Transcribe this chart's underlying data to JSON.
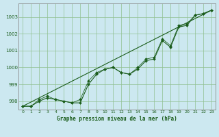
{
  "title": "Graphe pression niveau de la mer (hPa)",
  "background_color": "#cce8f0",
  "line_color": "#1a5c1a",
  "grid_color": "#90c090",
  "xlim": [
    -0.5,
    23.5
  ],
  "ylim": [
    997.5,
    1003.8
  ],
  "yticks": [
    998,
    999,
    1000,
    1001,
    1002,
    1003
  ],
  "xticks": [
    0,
    1,
    2,
    3,
    4,
    5,
    6,
    7,
    8,
    9,
    10,
    11,
    12,
    13,
    14,
    15,
    16,
    17,
    18,
    19,
    20,
    21,
    22,
    23
  ],
  "series1_x": [
    0,
    1,
    2,
    3,
    4,
    5,
    6,
    7,
    8,
    9,
    10,
    11,
    12,
    13,
    14,
    15,
    16,
    17,
    18,
    19,
    20,
    21,
    22,
    23
  ],
  "series1_y": [
    997.7,
    997.7,
    998.0,
    998.2,
    998.1,
    998.0,
    997.9,
    997.9,
    999.0,
    999.6,
    999.9,
    1000.0,
    999.7,
    999.6,
    999.9,
    1000.4,
    1000.5,
    1001.6,
    1001.2,
    1002.4,
    1002.5,
    1003.1,
    1003.2,
    1003.4
  ],
  "series2_x": [
    0,
    1,
    2,
    3,
    4,
    5,
    6,
    7,
    8,
    9,
    10,
    11,
    12,
    13,
    14,
    15,
    16,
    17,
    18,
    19,
    20,
    21,
    22,
    23
  ],
  "series2_y": [
    997.7,
    997.7,
    998.1,
    998.3,
    998.1,
    998.0,
    997.9,
    998.1,
    999.2,
    999.7,
    999.9,
    1000.0,
    999.7,
    999.6,
    1000.0,
    1000.5,
    1000.6,
    1001.7,
    1001.3,
    1002.5,
    1002.6,
    1003.1,
    1003.2,
    1003.4
  ],
  "trend_x": [
    0,
    23
  ],
  "trend_y": [
    997.7,
    1003.4
  ],
  "spine_color": "#888888"
}
